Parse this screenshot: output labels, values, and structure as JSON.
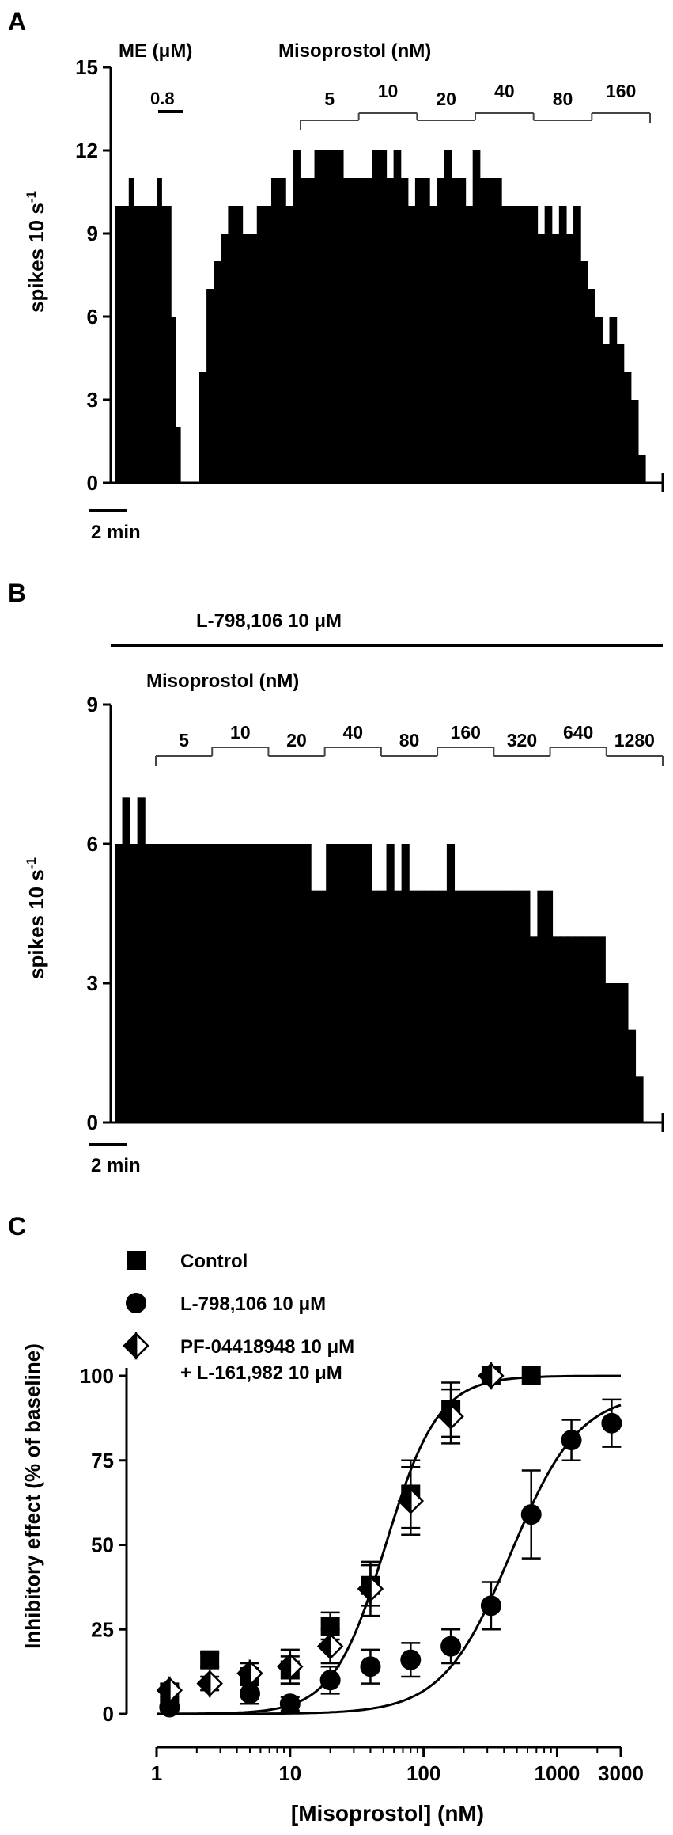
{
  "panels": {
    "A": {
      "label": "A"
    },
    "B": {
      "label": "B"
    },
    "C": {
      "label": "C"
    }
  },
  "chart_data": [
    {
      "id": "A",
      "type": "bar",
      "ylabel": "spikes 10 s",
      "ylabel_superscript": "-1",
      "ylim": [
        0,
        15
      ],
      "yticks": [
        0,
        3,
        6,
        9,
        12,
        15
      ],
      "scale_bar": "2 min",
      "drug_labels": {
        "me": "ME (μM)",
        "miso": "Misoprostol (nM)"
      },
      "me_dose": "0.8",
      "miso_doses": [
        "5",
        "10",
        "20",
        "40",
        "80",
        "160"
      ],
      "pre_values": [
        10,
        10,
        10,
        11,
        10,
        10,
        10,
        10,
        10,
        11,
        10,
        10,
        6,
        2
      ],
      "values": [
        4,
        7,
        8,
        9,
        10,
        10,
        9,
        9,
        10,
        10,
        11,
        11,
        10,
        12,
        11,
        11,
        12,
        12,
        12,
        12,
        11,
        11,
        11,
        11,
        12,
        12,
        11,
        12,
        11,
        10,
        11,
        11,
        10,
        11,
        12,
        11,
        11,
        10,
        12,
        11,
        11,
        11,
        10,
        10,
        10,
        10,
        10,
        9,
        10,
        9,
        10,
        9,
        10,
        8,
        7,
        6,
        5,
        6,
        5,
        4,
        3,
        1
      ]
    },
    {
      "id": "B",
      "type": "bar",
      "ylabel": "spikes 10 s",
      "ylabel_superscript": "-1",
      "ylim": [
        0,
        9
      ],
      "yticks": [
        0,
        3,
        6,
        9
      ],
      "scale_bar": "2 min",
      "antagonist_label": "L-798,106 10 μM",
      "drug_label": "Misoprostol (nM)",
      "miso_doses": [
        "5",
        "10",
        "20",
        "40",
        "80",
        "160",
        "320",
        "640",
        "1280"
      ],
      "values": [
        6,
        7,
        6,
        7,
        6,
        6,
        6,
        6,
        6,
        6,
        6,
        6,
        6,
        6,
        6,
        6,
        6,
        6,
        6,
        6,
        6,
        6,
        6,
        6,
        6,
        6,
        5,
        5,
        6,
        6,
        6,
        6,
        6,
        6,
        5,
        5,
        6,
        5,
        6,
        5,
        5,
        5,
        5,
        5,
        6,
        5,
        5,
        5,
        5,
        5,
        5,
        5,
        5,
        5,
        5,
        4,
        5,
        5,
        4,
        4,
        4,
        4,
        4,
        4,
        4,
        3,
        3,
        3,
        2,
        1
      ]
    },
    {
      "id": "C",
      "type": "scatter",
      "x_scale": "log",
      "xlim": [
        1,
        3000
      ],
      "ylim": [
        0,
        100
      ],
      "xticks": [
        1,
        10,
        100,
        1000,
        3000
      ],
      "yticks": [
        0,
        25,
        50,
        75,
        100
      ],
      "xlabel": "[Misoprostol] (nM)",
      "ylabel": "Inhibitory effect (% of baseline)",
      "x": [
        1.25,
        2.5,
        5,
        10,
        20,
        40,
        80,
        160,
        320,
        640,
        1280,
        2560
      ],
      "legend": [
        {
          "marker": "square",
          "label": "Control"
        },
        {
          "marker": "circle",
          "label": "L-798,106 10 μM"
        },
        {
          "marker": "halfdiamond",
          "label": "PF-04418948 10 μM",
          "label2": "+ L-161,982 10 μM"
        }
      ],
      "series": [
        {
          "marker": "square",
          "x": [
            1.25,
            2.5,
            5,
            10,
            20,
            40,
            80,
            160,
            320,
            640
          ],
          "values": [
            6,
            16,
            11,
            13,
            26,
            38,
            65,
            90,
            100,
            100
          ],
          "errors": [
            2,
            2,
            2,
            4,
            4,
            6,
            10,
            8,
            0,
            0
          ]
        },
        {
          "marker": "circle",
          "x": [
            1.25,
            5,
            10,
            20,
            40,
            80,
            160,
            320,
            640,
            1280,
            2560
          ],
          "values": [
            2,
            6,
            3,
            10,
            14,
            16,
            20,
            32,
            59,
            81,
            86
          ],
          "errors": [
            1,
            3,
            2,
            4,
            5,
            5,
            5,
            7,
            13,
            6,
            7
          ]
        },
        {
          "marker": "halfdiamond",
          "x": [
            1.25,
            2.5,
            5,
            10,
            20,
            40,
            80,
            160,
            320
          ],
          "values": [
            7,
            9,
            12,
            14,
            20,
            37,
            63,
            88,
            100
          ],
          "errors": [
            2,
            2,
            3,
            5,
            5,
            8,
            10,
            8,
            0
          ]
        }
      ],
      "fits": [
        {
          "bottom": 0,
          "top": 100,
          "ec50": 52,
          "hill": 2.2
        },
        {
          "bottom": 0,
          "top": 95,
          "ec50": 450,
          "hill": 1.7
        }
      ]
    }
  ]
}
